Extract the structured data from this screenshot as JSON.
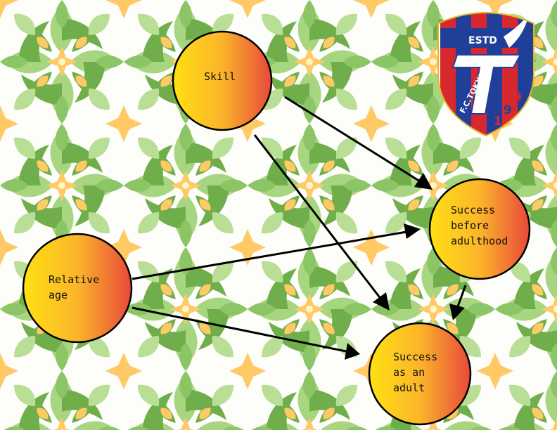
{
  "diagram": {
    "nodes": {
      "skill": {
        "lines": [
          "Skill"
        ]
      },
      "relative_age": {
        "lines": [
          "Relative",
          "age"
        ]
      },
      "success_before": {
        "lines": [
          "Success",
          "before",
          "adulthood"
        ]
      },
      "success_adult": {
        "lines": [
          "Success",
          "as an",
          "adult"
        ]
      }
    },
    "edges": [
      {
        "from": "skill",
        "to": "success_before"
      },
      {
        "from": "skill",
        "to": "success_adult"
      },
      {
        "from": "relative_age",
        "to": "success_before"
      },
      {
        "from": "relative_age",
        "to": "success_adult"
      },
      {
        "from": "success_before",
        "to": "success_adult"
      }
    ]
  },
  "logo": {
    "estd": "ESTD",
    "club": "F.C.TOKYO",
    "year_digits": [
      "1",
      "9",
      "9",
      "9"
    ]
  },
  "colors": {
    "node_gradient_start": "#ffd400",
    "node_gradient_mid": "#fbb52a",
    "node_gradient_end": "#e8483a",
    "arrow": "#000000",
    "pattern_green_dark": "#6fae4a",
    "pattern_green_light": "#a8d680",
    "pattern_orange": "#ffc966",
    "crest_red": "#d7282f",
    "crest_blue": "#1f3f99"
  }
}
